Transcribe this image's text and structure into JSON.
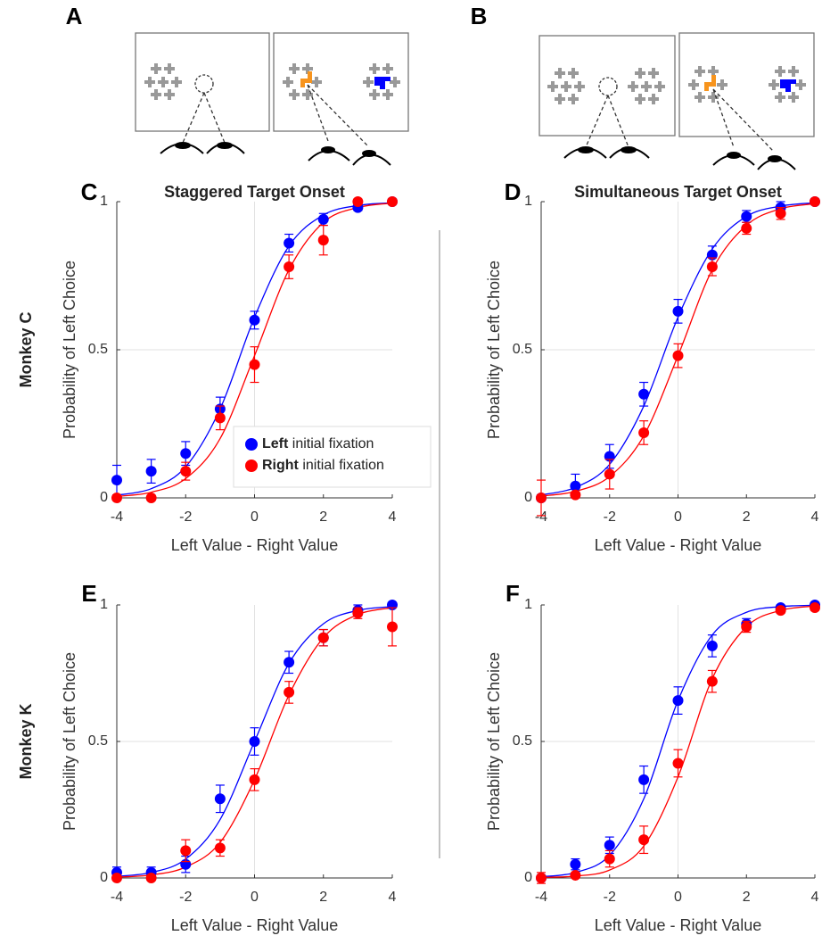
{
  "figure": {
    "panel_labels": [
      "A",
      "B",
      "C",
      "D",
      "E",
      "F"
    ],
    "row_labels": [
      "Monkey C",
      "Monkey K"
    ]
  },
  "chart_data": [
    {
      "type": "scatter",
      "title": "Staggered Target Onset",
      "xlabel": "Left Value - Right Value",
      "ylabel": "Probability of Left Choice",
      "xlim": [
        -4,
        4
      ],
      "ylim": [
        0,
        1
      ],
      "xticks": [
        -4,
        -2,
        0,
        2,
        4
      ],
      "yticks": [
        0,
        0.5,
        1
      ],
      "reference_lines": {
        "x": 0,
        "y": 0.5
      },
      "legend": "lower right",
      "x": [
        -4,
        -3,
        -2,
        -1,
        0,
        1,
        2,
        3,
        4
      ],
      "series": [
        {
          "name": "Left initial fixation",
          "color": "#0000ff",
          "values": [
            0.06,
            0.09,
            0.15,
            0.3,
            0.6,
            0.86,
            0.94,
            0.98,
            1.0
          ],
          "errors": [
            0.05,
            0.04,
            0.04,
            0.04,
            0.03,
            0.03,
            0.02,
            0.01,
            0.005
          ],
          "fit": [
            0.009,
            0.031,
            0.105,
            0.3,
            0.61,
            0.85,
            0.955,
            0.987,
            0.996
          ]
        },
        {
          "name": "Right initial fixation",
          "color": "#ff0000",
          "values": [
            0.0,
            0.0,
            0.09,
            0.27,
            0.45,
            0.78,
            0.87,
            1.0,
            1.0
          ],
          "errors": [
            0.005,
            0.005,
            0.03,
            0.04,
            0.06,
            0.04,
            0.05,
            0.005,
            0.005
          ],
          "fit": [
            0.005,
            0.019,
            0.065,
            0.2,
            0.48,
            0.77,
            0.93,
            0.98,
            0.995
          ]
        }
      ]
    },
    {
      "type": "scatter",
      "title": "Simultaneous Target Onset",
      "xlabel": "Left Value - Right Value",
      "ylabel": "Probability of Left Choice",
      "xlim": [
        -4,
        4
      ],
      "ylim": [
        0,
        1
      ],
      "xticks": [
        -4,
        -2,
        0,
        2,
        4
      ],
      "yticks": [
        0,
        0.5,
        1
      ],
      "reference_lines": {
        "x": 0,
        "y": 0.5
      },
      "x": [
        -4,
        -3,
        -2,
        -1,
        0,
        1,
        2,
        3,
        4
      ],
      "series": [
        {
          "color": "#0000ff",
          "values": [
            0.0,
            0.04,
            0.14,
            0.35,
            0.63,
            0.82,
            0.95,
            0.98,
            1.0
          ],
          "errors": [
            0.01,
            0.04,
            0.04,
            0.04,
            0.04,
            0.03,
            0.02,
            0.02,
            0.005
          ],
          "fit": [
            0.01,
            0.035,
            0.113,
            0.31,
            0.61,
            0.84,
            0.95,
            0.985,
            0.996
          ]
        },
        {
          "color": "#ff0000",
          "values": [
            0.0,
            0.01,
            0.08,
            0.22,
            0.48,
            0.78,
            0.91,
            0.96,
            1.0
          ],
          "errors": [
            0.06,
            0.01,
            0.05,
            0.04,
            0.04,
            0.03,
            0.02,
            0.02,
            0.005
          ],
          "fit": [
            0.006,
            0.022,
            0.072,
            0.21,
            0.48,
            0.77,
            0.92,
            0.976,
            0.993
          ]
        }
      ]
    },
    {
      "type": "scatter",
      "xlabel": "Left Value - Right Value",
      "ylabel": "Probability of Left Choice",
      "xlim": [
        -4,
        4
      ],
      "ylim": [
        0,
        1
      ],
      "xticks": [
        -4,
        -2,
        0,
        2,
        4
      ],
      "yticks": [
        0,
        0.5,
        1
      ],
      "reference_lines": {
        "x": 0,
        "y": 0.5
      },
      "x": [
        -4,
        -3,
        -2,
        -1,
        0,
        1,
        2,
        3,
        4
      ],
      "series": [
        {
          "color": "#0000ff",
          "values": [
            0.02,
            0.02,
            0.05,
            0.29,
            0.5,
            0.79,
            0.88,
            0.98,
            1.0
          ],
          "errors": [
            0.02,
            0.02,
            0.03,
            0.05,
            0.05,
            0.04,
            0.03,
            0.02,
            0.005
          ],
          "fit": [
            0.006,
            0.02,
            0.069,
            0.214,
            0.5,
            0.786,
            0.931,
            0.98,
            0.994
          ]
        },
        {
          "color": "#ff0000",
          "values": [
            0.0,
            0.0,
            0.1,
            0.11,
            0.36,
            0.68,
            0.88,
            0.97,
            0.92
          ],
          "errors": [
            0.005,
            0.005,
            0.04,
            0.03,
            0.04,
            0.04,
            0.03,
            0.02,
            0.07
          ],
          "fit": [
            0.003,
            0.011,
            0.04,
            0.13,
            0.36,
            0.67,
            0.88,
            0.965,
            0.99
          ]
        }
      ]
    },
    {
      "type": "scatter",
      "xlabel": "Left Value - Right Value",
      "ylabel": "Probability of Left Choice",
      "xlim": [
        -4,
        4
      ],
      "ylim": [
        0,
        1
      ],
      "xticks": [
        -4,
        -2,
        0,
        2,
        4
      ],
      "yticks": [
        0,
        0.5,
        1
      ],
      "reference_lines": {
        "x": 0,
        "y": 0.5
      },
      "x": [
        -4,
        -3,
        -2,
        -1,
        0,
        1,
        2,
        3,
        4
      ],
      "series": [
        {
          "color": "#0000ff",
          "values": [
            0.0,
            0.05,
            0.12,
            0.36,
            0.65,
            0.85,
            0.93,
            0.99,
            1.0
          ],
          "errors": [
            0.01,
            0.02,
            0.03,
            0.05,
            0.05,
            0.04,
            0.02,
            0.01,
            0.005
          ],
          "fit": [
            0.0045,
            0.02,
            0.083,
            0.29,
            0.65,
            0.89,
            0.973,
            0.994,
            0.999
          ]
        },
        {
          "color": "#ff0000",
          "values": [
            0.0,
            0.01,
            0.07,
            0.14,
            0.42,
            0.72,
            0.92,
            0.98,
            0.99
          ],
          "errors": [
            0.02,
            0.01,
            0.03,
            0.05,
            0.05,
            0.04,
            0.02,
            0.01,
            0.01
          ],
          "fit": [
            0.002,
            0.007,
            0.029,
            0.117,
            0.37,
            0.73,
            0.92,
            0.98,
            0.996
          ]
        }
      ]
    }
  ]
}
